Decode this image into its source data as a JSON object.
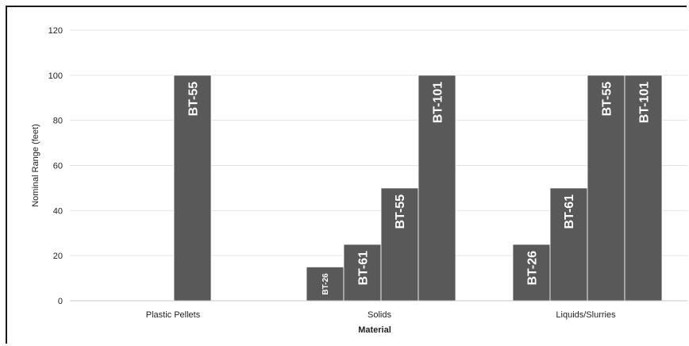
{
  "chart_data": {
    "type": "bar",
    "title": "",
    "xlabel": "Material",
    "ylabel": "Nominal Range (feet)",
    "ylim": [
      0,
      120
    ],
    "yticks": [
      0,
      20,
      40,
      60,
      80,
      100,
      120
    ],
    "grid": true,
    "legend": "none",
    "bar_color": "#595959",
    "categories": [
      "Plastic Pellets",
      "Solids",
      "Liquids/Slurries"
    ],
    "groups": [
      {
        "category": "Plastic Pellets",
        "bars": [
          {
            "label": "BT-55",
            "value": 100
          }
        ]
      },
      {
        "category": "Solids",
        "bars": [
          {
            "label": "BT-26",
            "value": 15
          },
          {
            "label": "BT-61",
            "value": 25
          },
          {
            "label": "BT-55",
            "value": 50
          },
          {
            "label": "BT-101",
            "value": 100
          }
        ]
      },
      {
        "category": "Liquids/Slurries",
        "bars": [
          {
            "label": "BT-26",
            "value": 25
          },
          {
            "label": "BT-61",
            "value": 50
          },
          {
            "label": "BT-55",
            "value": 100
          },
          {
            "label": "BT-101",
            "value": 100
          }
        ]
      }
    ]
  }
}
